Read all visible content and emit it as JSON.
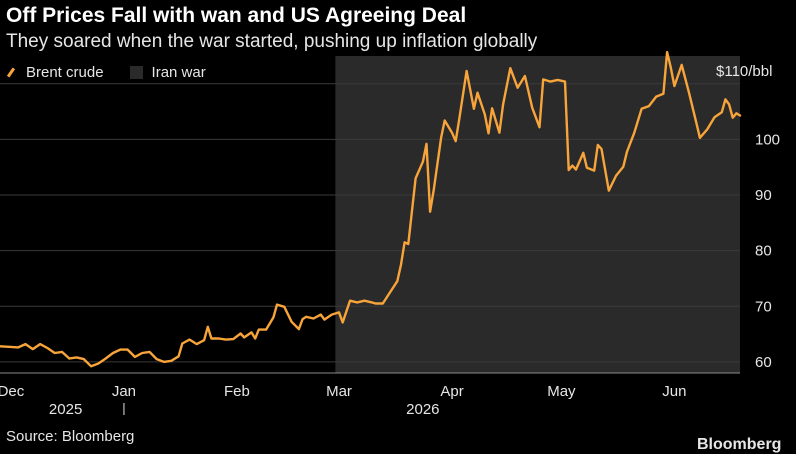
{
  "title": "Off Prices Fall with wan and US Agreeing Deal",
  "subtitle": "They soared when the war started, pushing up inflation globally",
  "legend": {
    "series_label": "Brent crude",
    "shade_label": "Iran war"
  },
  "source": "Source: Bloomberg",
  "brand": "Bloomberg",
  "colors": {
    "background": "#000000",
    "line": "#f7a43b",
    "shade": "#2a2a2a",
    "grid": "#3a3a3a",
    "text": "#e6e6e6"
  },
  "chart_data": {
    "type": "line",
    "title": "Off Prices Fall with wan and US Agreeing Deal",
    "subtitle": "They soared when the war started, pushing up inflation globally",
    "ylabel": "",
    "y_unit_label": "$110/bbl",
    "ylim": [
      58,
      115
    ],
    "yticks": [
      60,
      70,
      80,
      90,
      100,
      110
    ],
    "ytick_labels": [
      "60",
      "70",
      "80",
      "90",
      "100",
      "$110/bbl"
    ],
    "x_date_range": [
      "2025-11-28",
      "2026-06-19"
    ],
    "x_month_ticks": [
      {
        "date": "2025-12-01",
        "label": "Dec"
      },
      {
        "date": "2026-01-01",
        "label": "Jan"
      },
      {
        "date": "2026-02-01",
        "label": "Feb"
      },
      {
        "date": "2026-03-01",
        "label": "Mar"
      },
      {
        "date": "2026-04-01",
        "label": "Apr"
      },
      {
        "date": "2026-05-01",
        "label": "May"
      },
      {
        "date": "2026-06-01",
        "label": "Jun"
      }
    ],
    "x_year_labels": [
      {
        "date": "2025-12-16",
        "label": "2025"
      },
      {
        "date": "2026-03-24",
        "label": "2026"
      }
    ],
    "year_divider_date": "2026-01-01",
    "shaded_range": [
      "2026-02-28",
      "2026-06-19"
    ],
    "grid": true,
    "legend_position": "top-left",
    "series": [
      {
        "name": "Brent crude",
        "points": [
          [
            "2025-11-28",
            62.8
          ],
          [
            "2025-12-01",
            62.7
          ],
          [
            "2025-12-03",
            62.6
          ],
          [
            "2025-12-05",
            63.2
          ],
          [
            "2025-12-07",
            62.3
          ],
          [
            "2025-12-09",
            63.2
          ],
          [
            "2025-12-11",
            62.5
          ],
          [
            "2025-12-13",
            61.6
          ],
          [
            "2025-12-15",
            61.8
          ],
          [
            "2025-12-17",
            60.6
          ],
          [
            "2025-12-19",
            60.8
          ],
          [
            "2025-12-21",
            60.5
          ],
          [
            "2025-12-23",
            59.2
          ],
          [
            "2025-12-25",
            59.7
          ],
          [
            "2025-12-27",
            60.6
          ],
          [
            "2025-12-29",
            61.6
          ],
          [
            "2025-12-31",
            62.2
          ],
          [
            "2026-01-02",
            62.2
          ],
          [
            "2026-01-04",
            60.9
          ],
          [
            "2026-01-06",
            61.6
          ],
          [
            "2026-01-08",
            61.8
          ],
          [
            "2026-01-10",
            60.5
          ],
          [
            "2026-01-12",
            60.0
          ],
          [
            "2026-01-14",
            60.2
          ],
          [
            "2026-01-16",
            61.0
          ],
          [
            "2026-01-17",
            63.3
          ],
          [
            "2026-01-19",
            64.0
          ],
          [
            "2026-01-21",
            63.2
          ],
          [
            "2026-01-23",
            63.9
          ],
          [
            "2026-01-24",
            66.3
          ],
          [
            "2026-01-25",
            64.2
          ],
          [
            "2026-01-27",
            64.2
          ],
          [
            "2026-01-29",
            64.0
          ],
          [
            "2026-01-31",
            64.1
          ],
          [
            "2026-02-02",
            65.1
          ],
          [
            "2026-02-03",
            64.4
          ],
          [
            "2026-02-05",
            65.3
          ],
          [
            "2026-02-06",
            64.2
          ],
          [
            "2026-02-07",
            65.8
          ],
          [
            "2026-02-09",
            65.8
          ],
          [
            "2026-02-11",
            68.0
          ],
          [
            "2026-02-12",
            70.3
          ],
          [
            "2026-02-14",
            69.9
          ],
          [
            "2026-02-16",
            67.2
          ],
          [
            "2026-02-18",
            65.9
          ],
          [
            "2026-02-19",
            67.7
          ],
          [
            "2026-02-20",
            68.1
          ],
          [
            "2026-02-22",
            67.8
          ],
          [
            "2026-02-24",
            68.5
          ],
          [
            "2026-02-25",
            67.6
          ],
          [
            "2026-02-27",
            68.5
          ],
          [
            "2026-03-01",
            68.9
          ],
          [
            "2026-03-02",
            67.1
          ],
          [
            "2026-03-04",
            71.0
          ],
          [
            "2026-03-06",
            70.7
          ],
          [
            "2026-03-08",
            71.0
          ],
          [
            "2026-03-10",
            70.7
          ],
          [
            "2026-03-11",
            70.5
          ],
          [
            "2026-03-13",
            70.5
          ],
          [
            "2026-03-15",
            72.5
          ],
          [
            "2026-03-17",
            74.5
          ],
          [
            "2026-03-18",
            77.5
          ],
          [
            "2026-03-19",
            81.5
          ],
          [
            "2026-03-20",
            81.2
          ],
          [
            "2026-03-22",
            93.0
          ],
          [
            "2026-03-24",
            96.0
          ],
          [
            "2026-03-25",
            99.2
          ],
          [
            "2026-03-26",
            87.0
          ],
          [
            "2026-03-27",
            91.0
          ],
          [
            "2026-03-29",
            100.3
          ],
          [
            "2026-03-30",
            103.4
          ],
          [
            "2026-04-01",
            101.2
          ],
          [
            "2026-04-02",
            99.7
          ],
          [
            "2026-04-03",
            103.7
          ],
          [
            "2026-04-05",
            112.3
          ],
          [
            "2026-04-07",
            105.5
          ],
          [
            "2026-04-08",
            108.4
          ],
          [
            "2026-04-10",
            104.5
          ],
          [
            "2026-04-11",
            101.1
          ],
          [
            "2026-04-12",
            105.6
          ],
          [
            "2026-04-14",
            101.2
          ],
          [
            "2026-04-15",
            106.3
          ],
          [
            "2026-04-17",
            112.8
          ],
          [
            "2026-04-19",
            109.3
          ],
          [
            "2026-04-21",
            111.4
          ],
          [
            "2026-04-23",
            105.7
          ],
          [
            "2026-04-25",
            102.2
          ],
          [
            "2026-04-26",
            110.8
          ],
          [
            "2026-04-28",
            110.4
          ],
          [
            "2026-04-30",
            110.7
          ],
          [
            "2026-05-02",
            110.4
          ],
          [
            "2026-05-03",
            94.5
          ],
          [
            "2026-05-04",
            95.3
          ],
          [
            "2026-05-05",
            94.6
          ],
          [
            "2026-05-07",
            97.6
          ],
          [
            "2026-05-08",
            94.9
          ],
          [
            "2026-05-10",
            94.4
          ],
          [
            "2026-05-11",
            99.0
          ],
          [
            "2026-05-12",
            98.3
          ],
          [
            "2026-05-14",
            90.8
          ],
          [
            "2026-05-16",
            93.5
          ],
          [
            "2026-05-18",
            95.1
          ],
          [
            "2026-05-19",
            97.8
          ],
          [
            "2026-05-21",
            101.2
          ],
          [
            "2026-05-23",
            105.5
          ],
          [
            "2026-05-25",
            106.0
          ],
          [
            "2026-05-27",
            107.7
          ],
          [
            "2026-05-29",
            108.2
          ],
          [
            "2026-05-30",
            115.7
          ],
          [
            "2026-05-31",
            113.0
          ],
          [
            "2026-06-01",
            109.6
          ],
          [
            "2026-06-03",
            113.4
          ],
          [
            "2026-06-05",
            108.4
          ],
          [
            "2026-06-07",
            103.0
          ],
          [
            "2026-06-08",
            100.3
          ],
          [
            "2026-06-10",
            101.8
          ],
          [
            "2026-06-12",
            104.0
          ],
          [
            "2026-06-14",
            104.9
          ],
          [
            "2026-06-15",
            107.2
          ],
          [
            "2026-06-16",
            106.3
          ],
          [
            "2026-06-17",
            103.9
          ],
          [
            "2026-06-18",
            104.7
          ],
          [
            "2026-06-19",
            104.3
          ]
        ]
      }
    ]
  }
}
